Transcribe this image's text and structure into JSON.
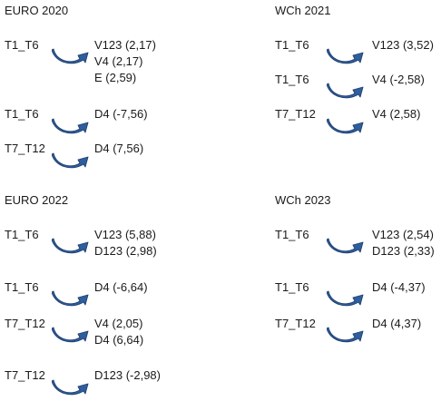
{
  "arrow_color": "#2E5E9E",
  "arrow_edge_color": "#1F3F6E",
  "panels": [
    {
      "title": "EURO 2020",
      "rows": [
        {
          "from": "T1_T6",
          "to": [
            "V123 (2,17)",
            "V4 (2,17)",
            "E (2,59)"
          ]
        },
        {
          "from": "T1_T6",
          "to": [
            "D4 (-7,56)"
          ]
        },
        {
          "from": "T7_T12",
          "to": [
            "D4 (7,56)"
          ]
        }
      ]
    },
    {
      "title": "WCh 2021",
      "rows": [
        {
          "from": "T1_T6",
          "to": [
            "V123 (3,52)"
          ]
        },
        {
          "from": "T1_T6",
          "to": [
            "V4 (-2,58)"
          ]
        },
        {
          "from": "T7_T12",
          "to": [
            "V4 (2,58)"
          ]
        }
      ]
    },
    {
      "title": "EURO 2022",
      "rows": [
        {
          "from": "T1_T6",
          "to": [
            "V123 (5,88)",
            "D123 (2,98)"
          ]
        },
        {
          "from": "T1_T6",
          "to": [
            "D4 (-6,64)"
          ]
        },
        {
          "from": "T7_T12",
          "to": [
            "V4 (2,05)",
            "D4 (6,64)"
          ]
        },
        {
          "from": "T7_T12",
          "to": [
            "D123 (-2,98)"
          ]
        }
      ]
    },
    {
      "title": "WCh 2023",
      "rows": [
        {
          "from": "T1_T6",
          "to": [
            "V123 (2,54)",
            "D123 (2,33)"
          ]
        },
        {
          "from": "T1_T6",
          "to": [
            "D4 (-4,37)"
          ]
        },
        {
          "from": "T7_T12",
          "to": [
            "D4 (4,37)"
          ]
        }
      ]
    }
  ]
}
